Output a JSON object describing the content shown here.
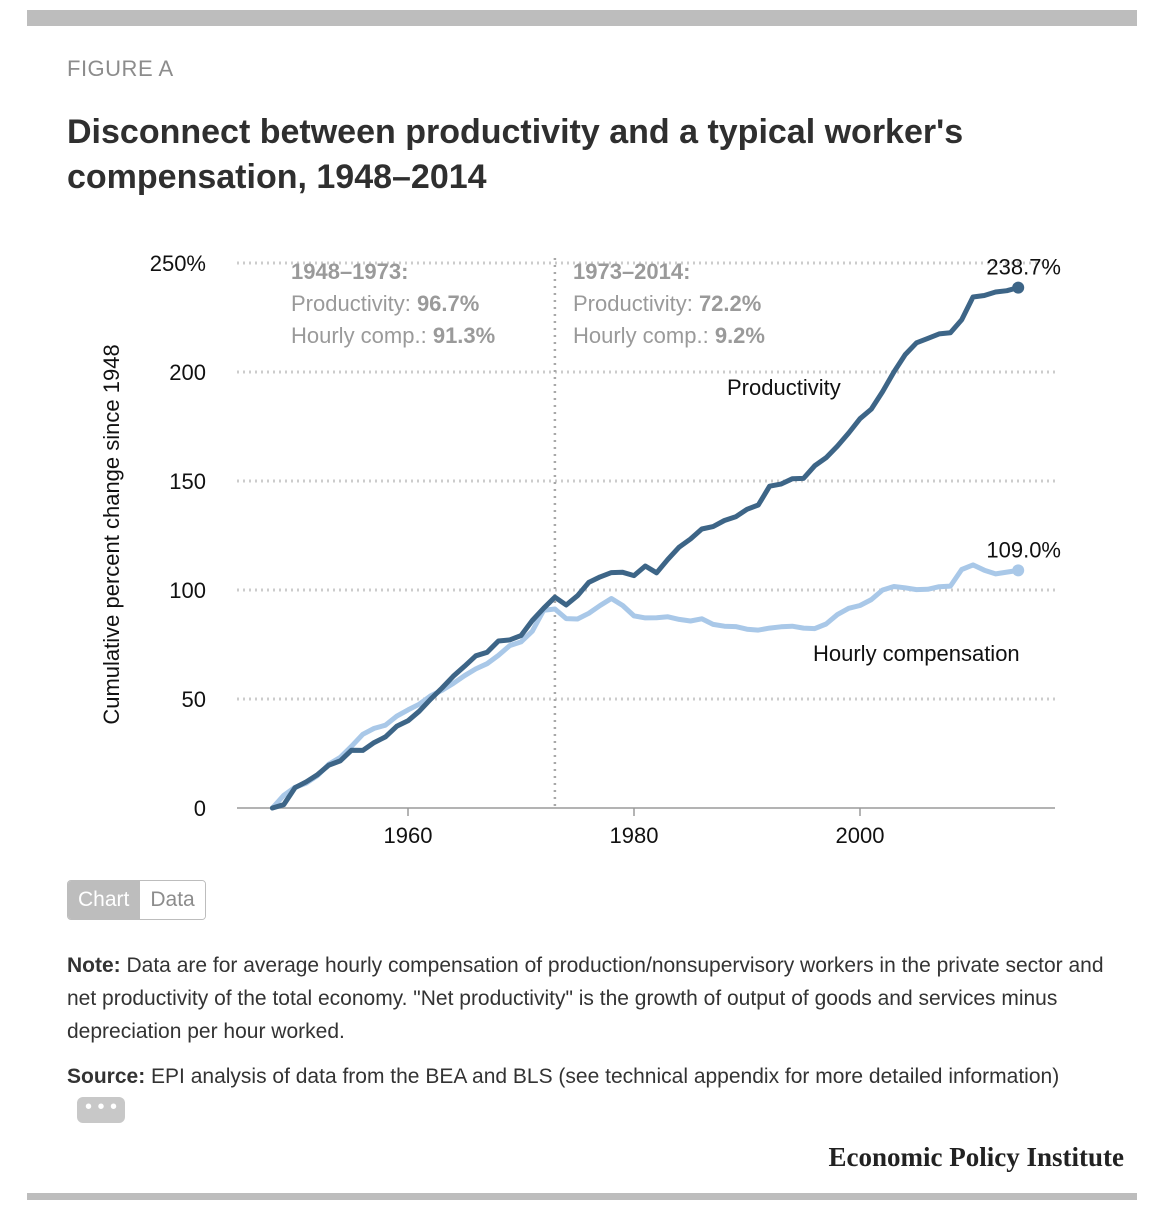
{
  "header": {
    "eyebrow": "FIGURE A",
    "title": "Disconnect between productivity and a typical worker's compensation, 1948–2014"
  },
  "chart_data": {
    "type": "line",
    "ylabel": "Cumulative percent change since 1948",
    "xlabel": "",
    "ylim": [
      0,
      250
    ],
    "xlim": [
      1944,
      2017
    ],
    "yticks": [
      0,
      50,
      100,
      150,
      200,
      250
    ],
    "ytick_labels": [
      "0",
      "50",
      "100",
      "150",
      "200",
      "250%"
    ],
    "xticks": [
      1960,
      1980,
      2000
    ],
    "xtick_labels": [
      "1960",
      "1980",
      "2000"
    ],
    "grid": "horizontal dotted",
    "annotations": [
      {
        "heading": "1948–1973:",
        "lines": [
          {
            "label": "Productivity: ",
            "value": "96.7%"
          },
          {
            "label": "Hourly comp.: ",
            "value": "91.3%"
          }
        ]
      },
      {
        "heading": "1973–2014:",
        "lines": [
          {
            "label": "Productivity: ",
            "value": "72.2%"
          },
          {
            "label": "Hourly comp.: ",
            "value": "9.2%"
          }
        ]
      }
    ],
    "divider_year": 1973,
    "end_labels": {
      "productivity": "238.7%",
      "compensation": "109.0%"
    },
    "colors": {
      "productivity": "#3d6587",
      "compensation": "#a9c8e8",
      "grid": "#cccccc",
      "axis": "#9a9a9a"
    },
    "series": [
      {
        "name": "Productivity",
        "x": [
          1948,
          1949,
          1950,
          1951,
          1952,
          1953,
          1954,
          1955,
          1956,
          1957,
          1958,
          1959,
          1960,
          1961,
          1962,
          1963,
          1964,
          1965,
          1966,
          1967,
          1968,
          1969,
          1970,
          1971,
          1972,
          1973,
          1974,
          1975,
          1976,
          1977,
          1978,
          1979,
          1980,
          1981,
          1982,
          1983,
          1984,
          1985,
          1986,
          1987,
          1988,
          1989,
          1990,
          1991,
          1992,
          1993,
          1994,
          1995,
          1996,
          1997,
          1998,
          1999,
          2000,
          2001,
          2002,
          2003,
          2004,
          2005,
          2006,
          2007,
          2008,
          2009,
          2010,
          2011,
          2012,
          2013,
          2014
        ],
        "values": [
          0,
          1.5,
          9.3,
          12.0,
          15.3,
          19.7,
          21.6,
          26.5,
          26.4,
          30.0,
          32.6,
          37.5,
          40.0,
          44.4,
          49.9,
          55.0,
          60.4,
          65.0,
          69.8,
          71.4,
          76.6,
          77.1,
          79.1,
          86.0,
          91.6,
          96.7,
          93.1,
          97.4,
          103.5,
          106.0,
          108.0,
          108.1,
          106.6,
          111.0,
          107.9,
          114.1,
          119.7,
          123.4,
          128.0,
          129.1,
          131.9,
          133.6,
          137.0,
          139.0,
          147.6,
          148.6,
          151.0,
          151.2,
          157.0,
          160.7,
          166.0,
          172.0,
          178.6,
          183.0,
          191.0,
          200.0,
          208.0,
          213.4,
          215.4,
          217.5,
          218.0,
          224.0,
          234.4,
          235.1,
          236.7,
          237.3,
          238.7
        ]
      },
      {
        "name": "Hourly compensation",
        "x": [
          1948,
          1949,
          1950,
          1951,
          1952,
          1953,
          1954,
          1955,
          1956,
          1957,
          1958,
          1959,
          1960,
          1961,
          1962,
          1963,
          1964,
          1965,
          1966,
          1967,
          1968,
          1969,
          1970,
          1971,
          1972,
          1973,
          1974,
          1975,
          1976,
          1977,
          1978,
          1979,
          1980,
          1981,
          1982,
          1983,
          1984,
          1985,
          1986,
          1987,
          1988,
          1989,
          1990,
          1991,
          1992,
          1993,
          1994,
          1995,
          1996,
          1997,
          1998,
          1999,
          2000,
          2001,
          2002,
          2003,
          2004,
          2005,
          2006,
          2007,
          2008,
          2009,
          2010,
          2011,
          2012,
          2013,
          2014
        ],
        "values": [
          0,
          5.8,
          9.5,
          11.4,
          14.9,
          20.1,
          23.2,
          28.3,
          33.8,
          36.5,
          38.0,
          42.1,
          45.0,
          47.6,
          51.4,
          54.0,
          57.1,
          60.7,
          63.8,
          66.2,
          70.0,
          74.5,
          76.2,
          81.1,
          90.7,
          91.3,
          86.9,
          86.7,
          89.3,
          92.9,
          96.1,
          92.9,
          88.1,
          87.2,
          87.3,
          87.7,
          86.5,
          85.8,
          86.8,
          84.2,
          83.4,
          83.2,
          82.0,
          81.6,
          82.5,
          83.1,
          83.4,
          82.5,
          82.3,
          84.4,
          88.7,
          91.6,
          92.9,
          95.6,
          100.0,
          101.6,
          101.0,
          100.2,
          100.3,
          101.5,
          101.8,
          109.4,
          111.5,
          109.1,
          107.4,
          108.2,
          109.0
        ]
      }
    ]
  },
  "controls": {
    "chart_tab": "Chart",
    "data_tab": "Data",
    "more": "• • •"
  },
  "footer": {
    "note_label": "Note:",
    "note_text": " Data are for average hourly compensation of production/nonsupervisory workers in the private sector and net productivity of the total economy. \"Net productivity\" is the growth of output of goods and services minus depreciation per hour worked.",
    "source_label": "Source:",
    "source_text": " EPI analysis of data from the BEA and BLS (see technical appendix for more detailed information)",
    "brand": "Economic Policy Institute"
  }
}
